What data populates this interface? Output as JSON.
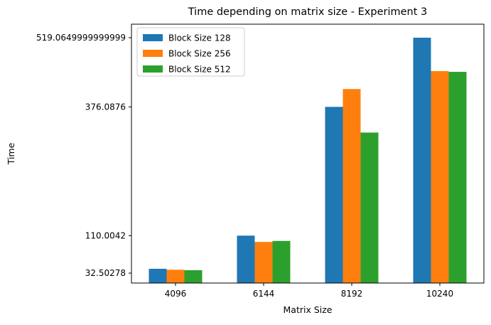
{
  "chart_data": {
    "type": "bar",
    "title": "Time depending on matrix size - Experiment 3",
    "xlabel": "Matrix Size",
    "ylabel": "Time",
    "categories": [
      "4096",
      "6144",
      "8192",
      "10240"
    ],
    "yticks": [
      32.50278,
      110.0042,
      376.0876,
      519.0649999999999
    ],
    "ytick_labels": [
      "32.50278",
      "110.0042",
      "376.0876",
      "519.0649999999999"
    ],
    "ylim": [
      12,
      547
    ],
    "legend_position": "upper-left",
    "series": [
      {
        "name": "Block Size 128",
        "color": "#1f77b4",
        "values": [
          41.5,
          110.0042,
          376.0876,
          519.065
        ]
      },
      {
        "name": "Block Size 256",
        "color": "#ff7f0e",
        "values": [
          39.5,
          97.0,
          413.0,
          450.0
        ]
      },
      {
        "name": "Block Size 512",
        "color": "#2ca02c",
        "values": [
          38.5,
          99.0,
          323.0,
          448.5
        ]
      }
    ]
  }
}
